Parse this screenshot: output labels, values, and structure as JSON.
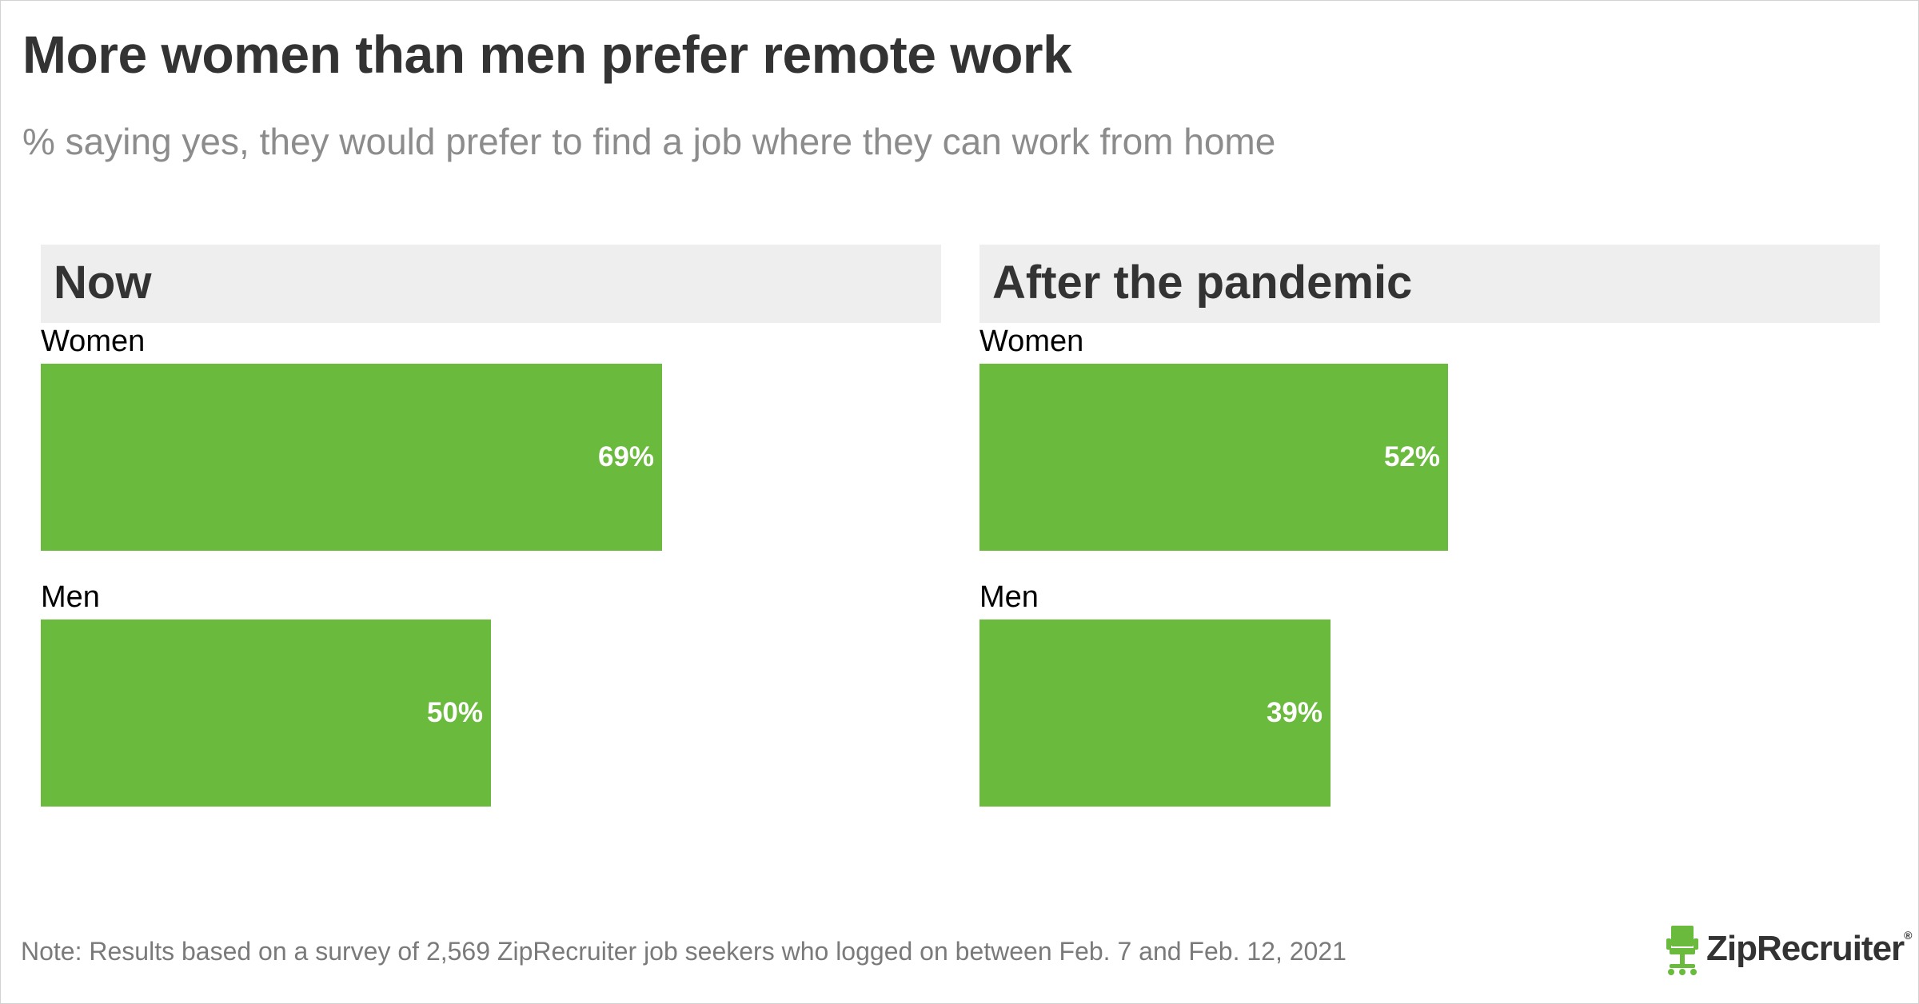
{
  "title": "More women than men prefer remote work",
  "subtitle": "% saying yes, they would prefer to find a job where they can work from home",
  "note": "Note: Results based on a survey of 2,569 ZipRecruiter job seekers who logged on between Feb. 7 and Feb. 12, 2021",
  "logo": {
    "text": "ZipRecruiter",
    "mark": "®",
    "icon": "chair-icon"
  },
  "colors": {
    "bar": "#6aba3e",
    "panel_header": "#eeeeee",
    "title": "#333333",
    "subtitle": "#8c8c8c",
    "bar_label": "#ffffff"
  },
  "chart_data": [
    {
      "type": "bar",
      "orientation": "horizontal",
      "title": "Now",
      "categories": [
        "Women",
        "Men"
      ],
      "values": [
        69,
        50
      ],
      "value_labels": [
        "69%",
        "50%"
      ],
      "xlim": [
        0,
        100
      ]
    },
    {
      "type": "bar",
      "orientation": "horizontal",
      "title": "After the pandemic",
      "categories": [
        "Women",
        "Men"
      ],
      "values": [
        52,
        39
      ],
      "value_labels": [
        "52%",
        "39%"
      ],
      "xlim": [
        0,
        100
      ]
    }
  ]
}
